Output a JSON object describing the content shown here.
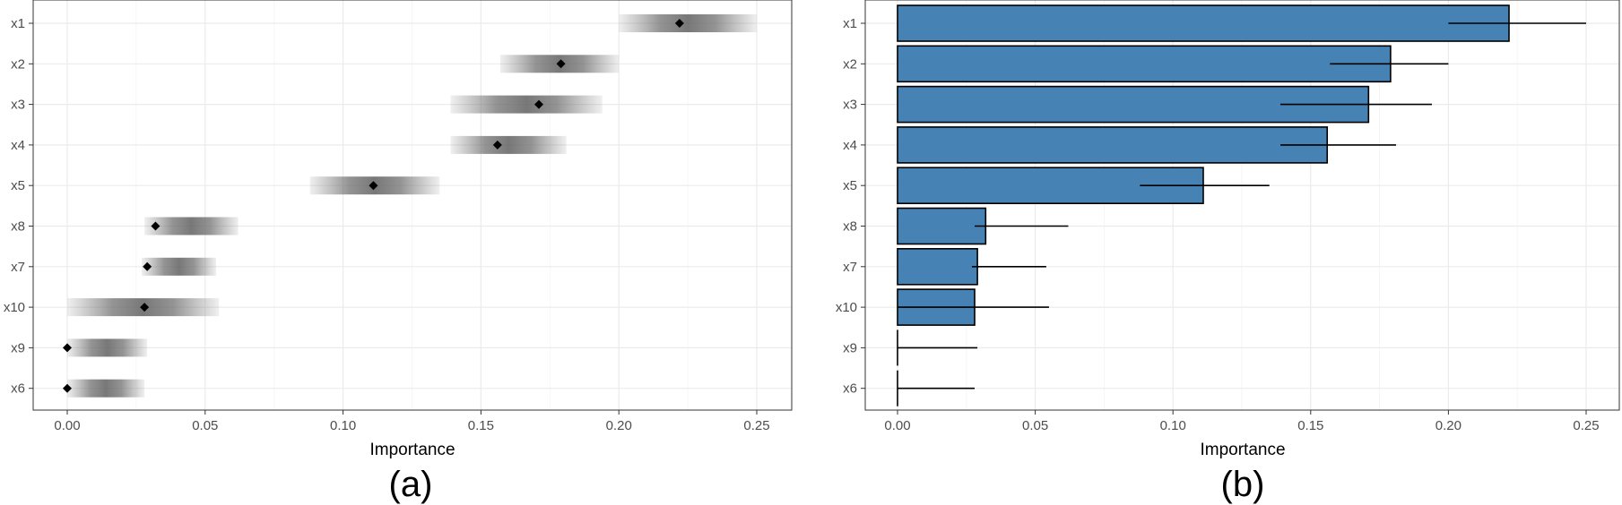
{
  "chart_data": [
    {
      "type": "interval",
      "panel_label": "(a)",
      "xlabel": "Importance",
      "ylabel": "",
      "xlim": [
        -0.012,
        0.25
      ],
      "x_ticks": [
        0.0,
        0.05,
        0.1,
        0.15,
        0.2,
        0.25
      ],
      "x_tick_labels": [
        "0.00",
        "0.05",
        "0.10",
        "0.15",
        "0.20",
        "0.25"
      ],
      "categories": [
        "x1",
        "x2",
        "x3",
        "x4",
        "x5",
        "x8",
        "x7",
        "x10",
        "x9",
        "x6"
      ],
      "values": [
        0.222,
        0.179,
        0.171,
        0.156,
        0.111,
        0.032,
        0.029,
        0.028,
        0.0,
        0.0
      ],
      "lower": [
        0.2,
        0.157,
        0.139,
        0.139,
        0.088,
        0.028,
        0.027,
        0.0,
        0.0,
        0.0
      ],
      "upper": [
        0.25,
        0.2,
        0.194,
        0.181,
        0.135,
        0.062,
        0.054,
        0.055,
        0.029,
        0.028
      ],
      "grid": true,
      "colors": {
        "point": "#000000",
        "band": "#7f7f7f"
      }
    },
    {
      "type": "bar",
      "orientation": "horizontal",
      "panel_label": "(b)",
      "xlabel": "Importance",
      "ylabel": "",
      "xlim": [
        -0.012,
        0.25
      ],
      "x_ticks": [
        0.0,
        0.05,
        0.1,
        0.15,
        0.2,
        0.25
      ],
      "x_tick_labels": [
        "0.00",
        "0.05",
        "0.10",
        "0.15",
        "0.20",
        "0.25"
      ],
      "categories": [
        "x1",
        "x2",
        "x3",
        "x4",
        "x5",
        "x8",
        "x7",
        "x10",
        "x9",
        "x6"
      ],
      "values": [
        0.222,
        0.179,
        0.171,
        0.156,
        0.111,
        0.032,
        0.029,
        0.028,
        0.0,
        0.0
      ],
      "error_lower": [
        0.2,
        0.157,
        0.139,
        0.139,
        0.088,
        0.028,
        0.027,
        0.0,
        0.0,
        0.0
      ],
      "error_upper": [
        0.25,
        0.2,
        0.194,
        0.181,
        0.135,
        0.062,
        0.054,
        0.055,
        0.029,
        0.028
      ],
      "grid": true,
      "colors": {
        "bar_fill": "#4682B4",
        "bar_stroke": "#000000",
        "error_bar": "#000000"
      }
    }
  ]
}
